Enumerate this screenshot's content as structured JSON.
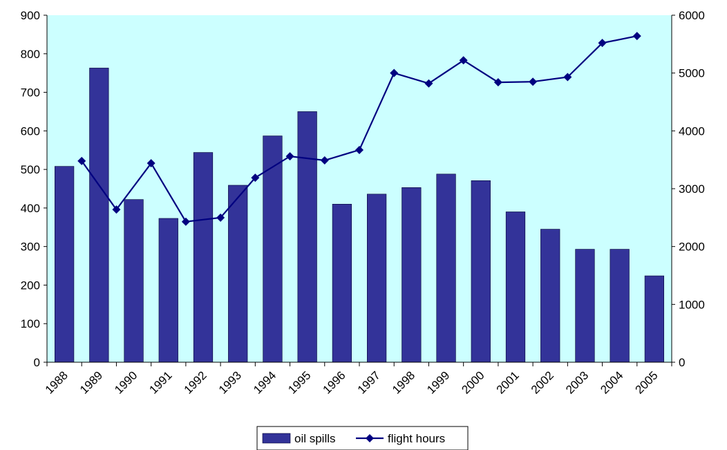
{
  "chart_data": {
    "type": "bar",
    "categories": [
      "1988",
      "1989",
      "1990",
      "1991",
      "1992",
      "1993",
      "1994",
      "1995",
      "1996",
      "1997",
      "1998",
      "1999",
      "2000",
      "2001",
      "2002",
      "2003",
      "2004",
      "2005"
    ],
    "series": [
      {
        "name": "oil spills",
        "type": "bar",
        "axis": "left",
        "color": "#333399",
        "values": [
          508,
          763,
          422,
          373,
          544,
          459,
          587,
          650,
          410,
          436,
          453,
          488,
          471,
          390,
          345,
          293,
          293,
          224
        ]
      },
      {
        "name": "flight hours",
        "type": "line",
        "axis": "right",
        "color": "#000080",
        "marker": "diamond",
        "values": [
          null,
          3480,
          2640,
          3440,
          2430,
          2500,
          3190,
          3560,
          3490,
          3670,
          5000,
          4820,
          5220,
          4840,
          4850,
          4930,
          5520,
          5640
        ]
      }
    ],
    "y_left": {
      "min": 0,
      "max": 900,
      "ticks": [
        "0",
        "100",
        "200",
        "300",
        "400",
        "500",
        "600",
        "700",
        "800",
        "900"
      ]
    },
    "y_right": {
      "min": 0,
      "max": 6000,
      "ticks": [
        "0",
        "1000",
        "2000",
        "3000",
        "4000",
        "5000",
        "6000"
      ]
    },
    "title": "",
    "xlabel": "",
    "ylabel": "",
    "grid": false,
    "legend_position": "bottom",
    "plot_background": "#ccffff"
  }
}
